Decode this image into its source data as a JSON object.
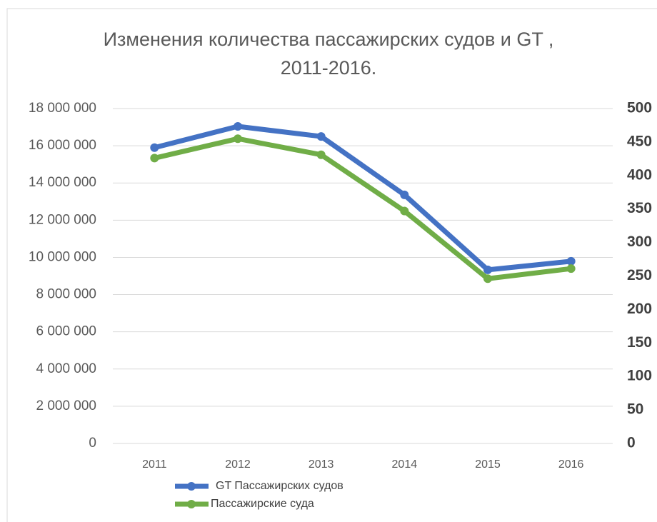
{
  "chart_data": {
    "type": "line",
    "title": [
      "Изменения количества пассажирских судов и GT ,",
      "2011-2016."
    ],
    "categories": [
      "2011",
      "2012",
      "2013",
      "2014",
      "2015",
      "2016"
    ],
    "series": [
      {
        "name": "GT Пассажирских судов",
        "color": "#4472c4",
        "values": [
          15900000,
          17040000,
          16500000,
          13360000,
          9330000,
          9790000
        ]
      },
      {
        "name": "Пассажирские суда",
        "color": "#70ad47",
        "axis": "y2",
        "values": [
          426,
          455,
          431,
          347,
          246,
          261
        ]
      }
    ],
    "ylim": [
      0,
      18000000
    ],
    "yticks": [
      {
        "value": 0,
        "label": "0"
      },
      {
        "value": 2000000,
        "label": "2 000 000"
      },
      {
        "value": 4000000,
        "label": "4 000 000"
      },
      {
        "value": 6000000,
        "label": "6 000 000"
      },
      {
        "value": 8000000,
        "label": "8 000 000"
      },
      {
        "value": 10000000,
        "label": "10 000 000"
      },
      {
        "value": 12000000,
        "label": "12 000 000"
      },
      {
        "value": 14000000,
        "label": "14 000 000"
      },
      {
        "value": 16000000,
        "label": "16 000 000"
      },
      {
        "value": 18000000,
        "label": "18 000 000"
      }
    ],
    "y2lim": [
      0,
      500
    ],
    "y2ticks": [
      0,
      50,
      100,
      150,
      200,
      250,
      300,
      350,
      400,
      450,
      500
    ],
    "grid": true,
    "legend": "bottom-left"
  }
}
